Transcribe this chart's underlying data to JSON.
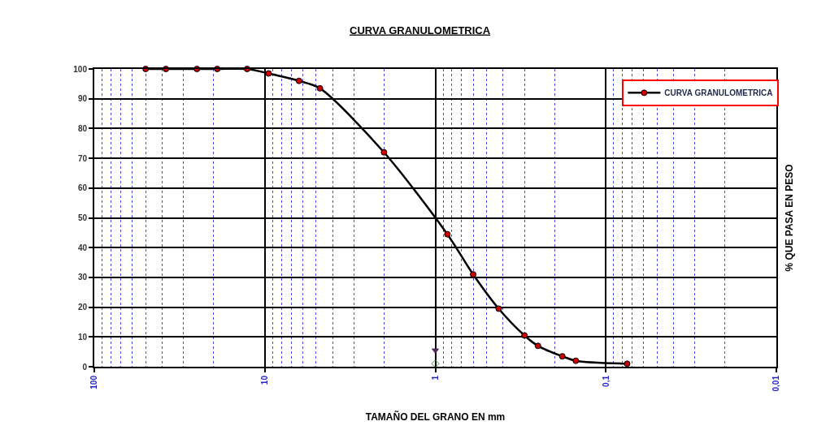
{
  "chart_data": {
    "type": "line",
    "title": "CURVA GRANULOMETRICA",
    "xlabel": "TAMAÑO DEL GRANO EN mm",
    "ylabel": "% QUE PASA EN PESO",
    "log": "x",
    "xlim": [
      100,
      0.01
    ],
    "xticks": [
      100,
      {
        "value": 90,
        "label": null
      },
      {
        "value": 80,
        "label": null
      },
      {
        "value": 70,
        "label": null
      },
      {
        "value": 60,
        "label": null
      },
      {
        "value": 50,
        "label": null
      },
      {
        "value": 40,
        "label": null
      },
      {
        "value": 30,
        "label": null
      },
      {
        "value": 20,
        "label": null
      },
      10,
      {
        "value": 9,
        "label": null
      },
      {
        "value": 8,
        "label": null
      },
      {
        "value": 7,
        "label": null
      },
      {
        "value": 6,
        "label": null
      },
      {
        "value": 5,
        "label": null
      },
      {
        "value": 4,
        "label": null
      },
      {
        "value": 3,
        "label": null
      },
      {
        "value": 2,
        "label": null
      },
      1,
      {
        "value": 0.9,
        "label": null
      },
      {
        "value": 0.8,
        "label": null
      },
      {
        "value": 0.7,
        "label": null
      },
      {
        "value": 0.6,
        "label": null
      },
      {
        "value": 0.5,
        "label": null
      },
      {
        "value": 0.4,
        "label": null
      },
      {
        "value": 0.3,
        "label": null
      },
      {
        "value": 0.2,
        "label": null
      },
      {
        "value": 0.1,
        "label": "0,1"
      },
      {
        "value": 0.09,
        "label": null
      },
      {
        "value": 0.08,
        "label": null
      },
      {
        "value": 0.07,
        "label": null
      },
      {
        "value": 0.06,
        "label": null
      },
      {
        "value": 0.05,
        "label": null
      },
      {
        "value": 0.04,
        "label": null
      },
      {
        "value": 0.03,
        "label": null
      },
      {
        "value": 0.02,
        "label": null
      },
      {
        "value": 0.01,
        "label": "0,01"
      }
    ],
    "ylim": [
      0,
      100
    ],
    "yticks": [
      0,
      10,
      20,
      30,
      40,
      50,
      60,
      70,
      80,
      90,
      100
    ],
    "grid": true,
    "legend": "top right",
    "marker": "circle",
    "line_style": "solid",
    "series": [
      {
        "name": "CURVA GRANULOMETRICA",
        "color": "#000000",
        "colors": [
          "#cc0000",
          "#cc0000",
          "#cc0000",
          "#cc0000",
          "#cc0000",
          "#cc0000",
          "#cc0000",
          "#cc0000",
          "#cc0000",
          "#cc0000",
          "#cc0000",
          "#cc0000",
          "#cc0000",
          "#cc0000",
          "#cc0000",
          "#cc0000",
          "#cc0000"
        ],
        "x": [
          50,
          38,
          25,
          19,
          12.7,
          9.5,
          6.3,
          4.75,
          2,
          0.85,
          0.6,
          0.425,
          0.3,
          0.25,
          0.18,
          0.15,
          0.075
        ],
        "values": [
          100,
          100,
          100,
          100,
          100,
          98.5,
          96,
          93.5,
          72,
          44.5,
          31,
          19.5,
          10.5,
          7,
          3.5,
          2,
          1
        ]
      },
      {
        "type": "scatter",
        "color": "#4b2c5e",
        "marker": "triangle",
        "x": [
          1
        ],
        "values": [
          5.5
        ]
      },
      {
        "type": "scatter",
        "color": "#3a9a3a",
        "marker": "diamond",
        "x": [
          1
        ],
        "values": [
          1
        ]
      }
    ]
  }
}
